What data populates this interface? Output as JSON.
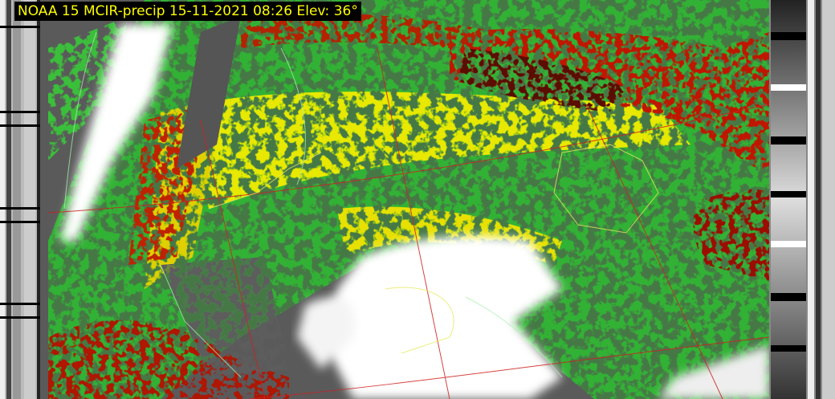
{
  "header": {
    "title": "NOAA 15 MCIR-precip 15-11-2021 08:26 Elev: 36°"
  }
}
